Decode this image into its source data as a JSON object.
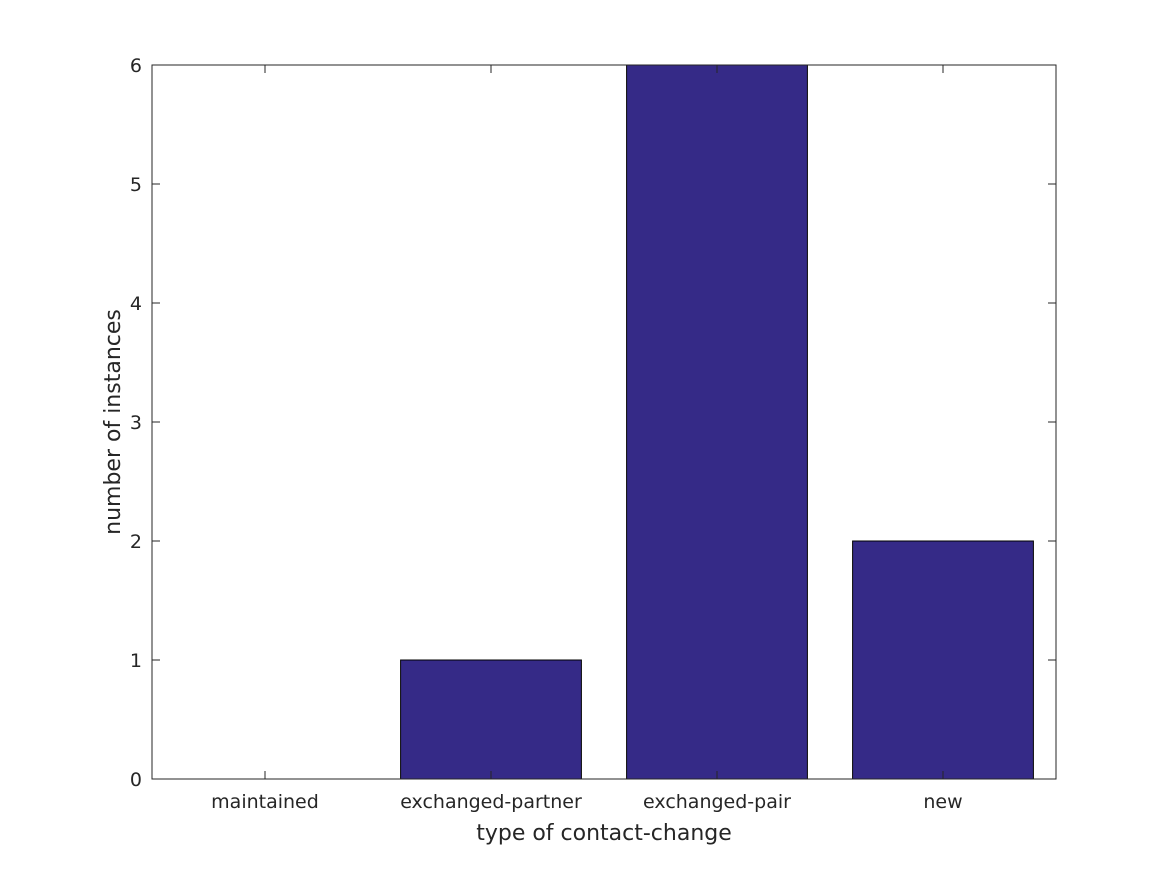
{
  "chart_data": {
    "type": "bar",
    "categories": [
      "maintained",
      "exchanged-partner",
      "exchanged-pair",
      "new"
    ],
    "values": [
      0,
      1,
      6,
      2
    ],
    "title": "",
    "xlabel": "type of contact-change",
    "ylabel": "number of instances",
    "ylim": [
      0,
      6
    ],
    "yticks": [
      0,
      1,
      2,
      3,
      4,
      5,
      6
    ],
    "grid": false,
    "legend": "none",
    "bar_color": "#352a87",
    "axis_color": "#262626"
  }
}
